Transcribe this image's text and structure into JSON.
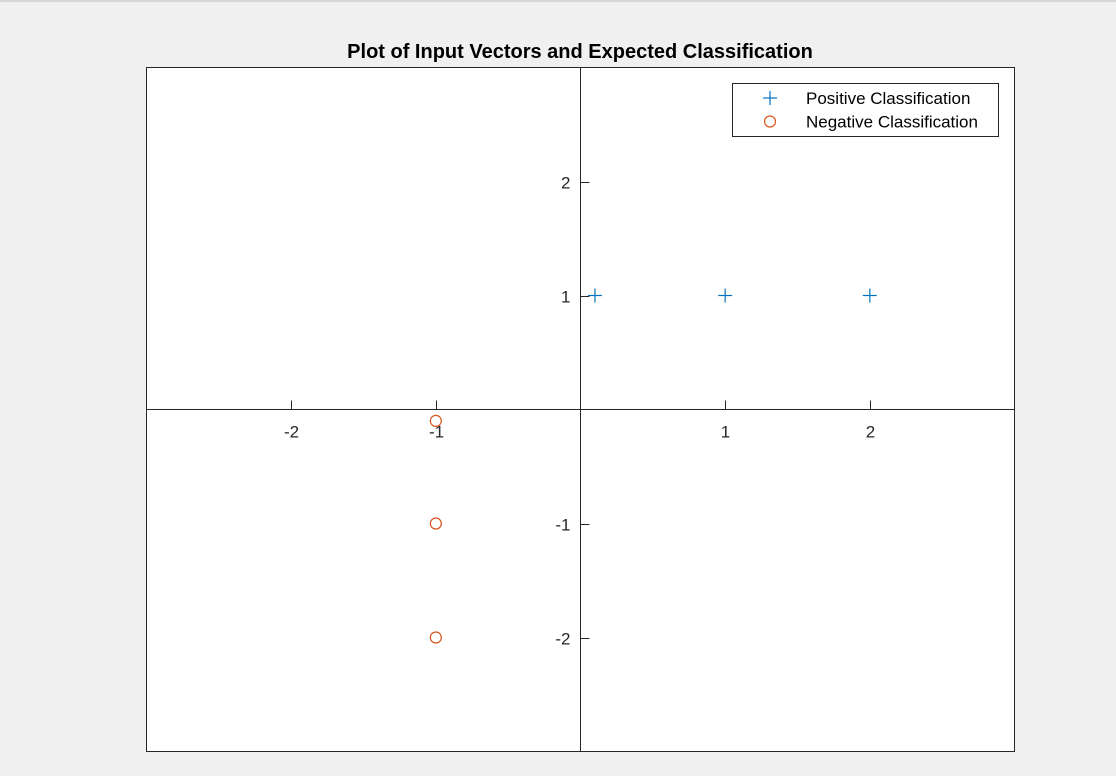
{
  "chart_data": {
    "type": "scatter",
    "title": "Plot of Input Vectors and Expected Classification",
    "xlabel": "",
    "ylabel": "",
    "xlim": [
      -3,
      3
    ],
    "ylim": [
      -3,
      3
    ],
    "axis_location": "origin",
    "grid": false,
    "legend_position": "top-right",
    "x_ticks": [
      -2,
      -1,
      1,
      2
    ],
    "y_ticks": [
      2,
      1,
      -1,
      -2
    ],
    "x_tick_labels": [
      "-2",
      "-1",
      "1",
      "2"
    ],
    "y_tick_labels": [
      "2",
      "1",
      "-1",
      "-2"
    ],
    "series": [
      {
        "name": "Positive Classification",
        "marker": "plus",
        "color": "#0072BD",
        "points": [
          [
            0.1,
            1
          ],
          [
            1,
            1
          ],
          [
            2,
            1
          ]
        ]
      },
      {
        "name": "Negative Classification",
        "marker": "circle",
        "color": "#D95319",
        "points": [
          [
            -1,
            -0.1
          ],
          [
            -1,
            -1
          ],
          [
            -1,
            -2
          ]
        ]
      }
    ]
  }
}
